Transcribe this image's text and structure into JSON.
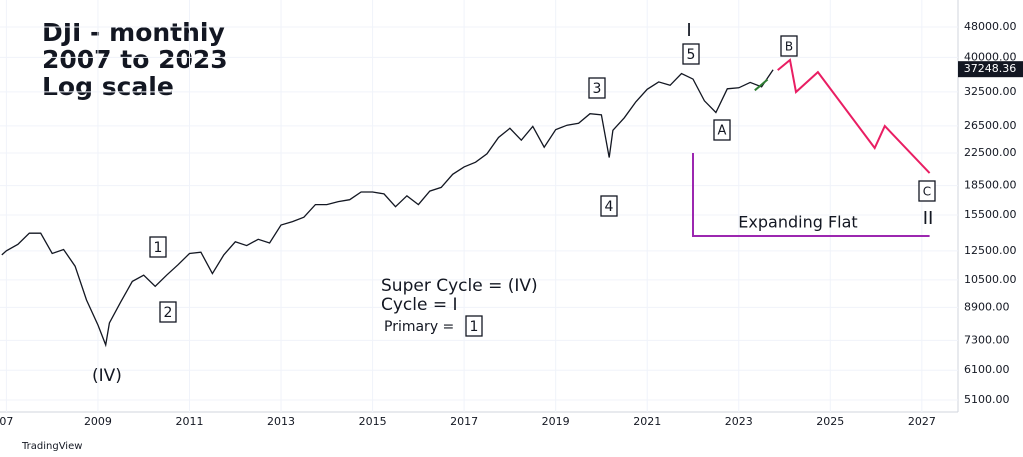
{
  "chart_data": {
    "type": "line",
    "title_lines": [
      "DJI - monthly",
      "2007 to 2023",
      "Log scale"
    ],
    "log_scale": true,
    "grid": true,
    "xlim": [
      2006.86,
      2027.79
    ],
    "xticks": [
      {
        "value": 2007,
        "label": "07"
      },
      2009,
      2011,
      2013,
      2015,
      2017,
      2019,
      2021,
      2023,
      2025,
      2027
    ],
    "ylim": [
      4745,
      56450
    ],
    "yticks": [
      {
        "value": 5100,
        "label": "5100.00"
      },
      {
        "value": 6100,
        "label": "6100.00"
      },
      {
        "value": 7300,
        "label": "7300.00"
      },
      {
        "value": 8900,
        "label": "8900.00"
      },
      {
        "value": 10500,
        "label": "10500.00"
      },
      {
        "value": 12500,
        "label": "12500.00"
      },
      {
        "value": 15500,
        "label": "15500.00"
      },
      {
        "value": 18500,
        "label": "18500.00"
      },
      {
        "value": 22500,
        "label": "22500.00"
      },
      {
        "value": 26500,
        "label": "26500.00"
      },
      {
        "value": 32500,
        "label": "32500.00"
      },
      {
        "value": 40000,
        "label": "40000.00"
      },
      {
        "value": 48000,
        "label": "48000.00"
      }
    ],
    "last_price": 37248.36,
    "series": [
      {
        "color": "#131722",
        "x": [
          2006.9,
          2007.0,
          2007.25,
          2007.5,
          2007.75,
          2008.0,
          2008.25,
          2008.5,
          2008.75,
          2009.0,
          2009.17,
          2009.25,
          2009.5,
          2009.75,
          2010.0,
          2010.25,
          2010.5,
          2010.75,
          2011.0,
          2011.25,
          2011.5,
          2011.75,
          2012.0,
          2012.25,
          2012.5,
          2012.75,
          2013.0,
          2013.25,
          2013.5,
          2013.75,
          2014.0,
          2014.25,
          2014.5,
          2014.75,
          2015.0,
          2015.25,
          2015.5,
          2015.75,
          2016.0,
          2016.25,
          2016.5,
          2016.75,
          2017.0,
          2017.25,
          2017.5,
          2017.75,
          2018.0,
          2018.25,
          2018.5,
          2018.75,
          2019.0,
          2019.25,
          2019.5,
          2019.75,
          2020.0,
          2020.17,
          2020.25,
          2020.5,
          2020.75,
          2021.0,
          2021.25,
          2021.5,
          2021.75,
          2022.0,
          2022.25,
          2022.5,
          2022.75,
          2023.0,
          2023.25,
          2023.5,
          2023.75
        ],
        "values": [
          12200,
          12500,
          13000,
          13900,
          13900,
          12300,
          12600,
          11400,
          9300,
          8000,
          7100,
          8100,
          9200,
          10400,
          10800,
          10100,
          10800,
          11500,
          12300,
          12400,
          10900,
          12200,
          13200,
          12900,
          13400,
          13100,
          14600,
          14900,
          15300,
          16500,
          16500,
          16800,
          17000,
          17800,
          17800,
          17600,
          16300,
          17400,
          16500,
          17900,
          18300,
          19800,
          20700,
          21300,
          22400,
          24700,
          26100,
          24300,
          26400,
          23300,
          25900,
          26600,
          26900,
          28500,
          28300,
          21900,
          25800,
          27800,
          30600,
          33000,
          34500,
          33800,
          36300,
          35100,
          30800,
          28700,
          33100,
          33300,
          34400,
          33500,
          37100
        ]
      },
      {
        "color": "#e91e63",
        "x": [
          2023.85,
          2024.12,
          2024.25,
          2024.73,
          2025.97,
          2026.19,
          2027.17
        ],
        "values": [
          37040,
          39360,
          32480,
          36600,
          23190,
          26470,
          19950
        ]
      },
      {
        "color": "#9c27b0",
        "x": [
          2022.0,
          2022.0,
          2027.17
        ],
        "values": [
          22500,
          13670,
          13670
        ]
      },
      {
        "color": "#2e7d32",
        "x": [
          2023.35,
          2023.63
        ],
        "values": [
          32800,
          35000
        ]
      }
    ],
    "annotations": [
      {
        "text": "(IV)",
        "boxed": false
      },
      {
        "text": "1",
        "boxed": true
      },
      {
        "text": "2",
        "boxed": true
      },
      {
        "text": "3",
        "boxed": true
      },
      {
        "text": "4",
        "boxed": true
      },
      {
        "text": "5",
        "boxed": true
      },
      {
        "text": "I",
        "boxed": false
      },
      {
        "text": "A",
        "boxed": true
      },
      {
        "text": "B",
        "boxed": true
      },
      {
        "text": "C",
        "boxed": true
      },
      {
        "text": "II",
        "boxed": false
      },
      {
        "text": "Super Cycle = (IV)",
        "boxed": false
      },
      {
        "text": "Cycle = I",
        "boxed": false
      },
      {
        "text": "Primary =",
        "boxed": false
      },
      {
        "text": "1",
        "boxed": true
      },
      {
        "text": "Expanding Flat",
        "boxed": false
      }
    ],
    "footer": "TradingView"
  }
}
